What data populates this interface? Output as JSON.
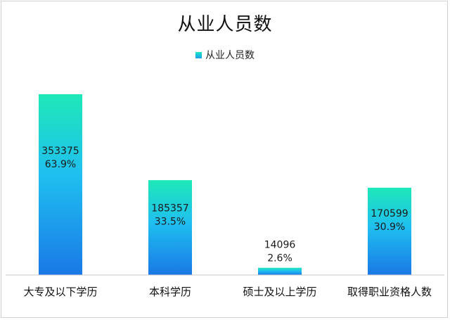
{
  "chart_data": {
    "type": "bar",
    "title": "从业人员数",
    "legend": "从业人员数",
    "categories": [
      "大专及以下学历",
      "本科学历",
      "硕士及以上学历",
      "取得职业资格人数"
    ],
    "series": [
      {
        "name": "从业人员数",
        "values": [
          353375,
          185357,
          14096,
          170599
        ],
        "percent_labels": [
          "63.9%",
          "33.5%",
          "2.6%",
          "30.9%"
        ]
      }
    ],
    "value_labels": [
      "353375",
      "185357",
      "14096",
      "170599"
    ],
    "ylim": [
      0,
      400000
    ],
    "grid": false,
    "legend_position": "top",
    "colors": {
      "bar_top": "#1ee8b8",
      "bar_mid": "#1fbff0",
      "bar_bottom": "#1a78e6"
    }
  }
}
